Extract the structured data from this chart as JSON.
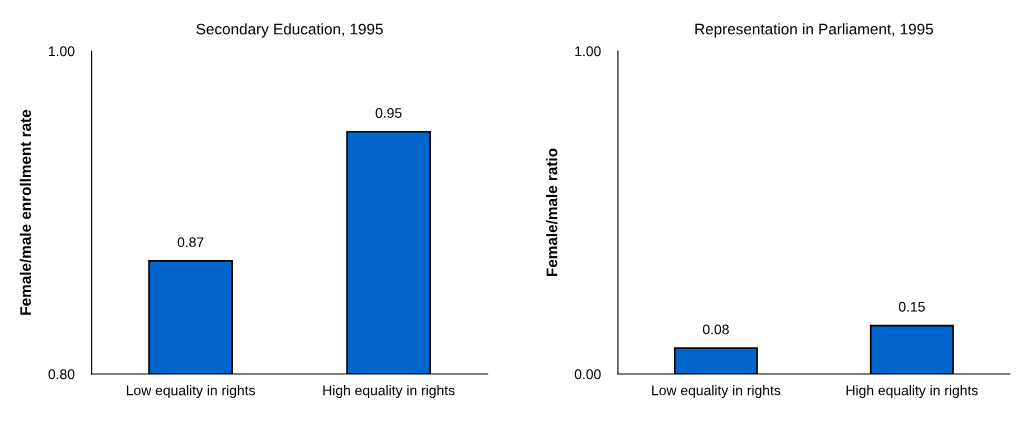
{
  "chart_data": [
    {
      "type": "bar",
      "title": "Secondary Education, 1995",
      "ylabel": "Female/male enrollment rate",
      "categories": [
        "Low equality in rights",
        "High equality in rights"
      ],
      "values": [
        0.87,
        0.95
      ],
      "color": "#0066cc",
      "ylim": [
        0.8,
        1.0
      ],
      "yticks": [
        {
          "value": 0.8,
          "label": "0.80"
        },
        {
          "value": 1.0,
          "label": "1.00"
        }
      ],
      "data_labels": true,
      "value_labels": [
        "0.87",
        "0.95"
      ],
      "grid": false,
      "legend": false
    },
    {
      "type": "bar",
      "title": "Representation in Parliament, 1995",
      "ylabel": "Female/male ratio",
      "categories": [
        "Low equality in rights",
        "High equality in rights"
      ],
      "values": [
        0.08,
        0.15
      ],
      "color": "#0066cc",
      "ylim": [
        0.0,
        1.0
      ],
      "yticks": [
        {
          "value": 0.0,
          "label": "0.00"
        },
        {
          "value": 1.0,
          "label": "1.00"
        }
      ],
      "data_labels": true,
      "value_labels": [
        "0.08",
        "0.15"
      ],
      "grid": false,
      "legend": false
    }
  ]
}
